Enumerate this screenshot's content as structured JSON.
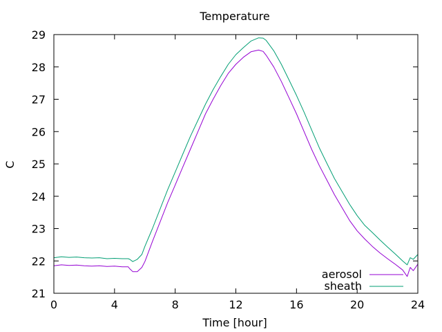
{
  "chart_data": {
    "type": "line",
    "title": "Temperature",
    "xlabel": "Time [hour]",
    "ylabel": "C",
    "xlim": [
      0,
      24
    ],
    "ylim": [
      21,
      29
    ],
    "x_ticks": [
      0,
      4,
      8,
      12,
      16,
      20,
      24
    ],
    "y_ticks": [
      21,
      22,
      23,
      24,
      25,
      26,
      27,
      28,
      29
    ],
    "grid": false,
    "legend_position": "bottom-right",
    "series": [
      {
        "name": "aerosol",
        "color": "#9400d3",
        "x": [
          0,
          0.5,
          1,
          1.5,
          2,
          2.5,
          3,
          3.5,
          4,
          4.5,
          4.9,
          5.0,
          5.2,
          5.5,
          5.8,
          6.0,
          6.5,
          7.0,
          7.5,
          8.0,
          8.5,
          9.0,
          9.5,
          10.0,
          10.5,
          11.0,
          11.5,
          12.0,
          12.5,
          13.0,
          13.5,
          13.8,
          14.0,
          14.5,
          15.0,
          15.5,
          16.0,
          16.5,
          17.0,
          17.5,
          18.0,
          18.5,
          19.0,
          19.5,
          20.0,
          20.5,
          21.0,
          21.5,
          22.0,
          22.5,
          23.0,
          23.3,
          23.5,
          23.7,
          24.0
        ],
        "values": [
          21.85,
          21.88,
          21.86,
          21.87,
          21.85,
          21.84,
          21.85,
          21.83,
          21.84,
          21.82,
          21.82,
          21.76,
          21.67,
          21.67,
          21.8,
          21.98,
          22.6,
          23.2,
          23.8,
          24.35,
          24.9,
          25.45,
          26.0,
          26.55,
          27.0,
          27.42,
          27.8,
          28.08,
          28.3,
          28.47,
          28.52,
          28.48,
          28.36,
          28.0,
          27.55,
          27.05,
          26.55,
          26.0,
          25.45,
          24.95,
          24.5,
          24.05,
          23.65,
          23.25,
          22.93,
          22.68,
          22.45,
          22.25,
          22.07,
          21.9,
          21.72,
          21.52,
          21.8,
          21.7,
          21.9
        ]
      },
      {
        "name": "sheath",
        "color": "#009e73",
        "x": [
          0,
          0.5,
          1,
          1.5,
          2,
          2.5,
          3,
          3.5,
          4,
          4.5,
          4.9,
          5.0,
          5.2,
          5.5,
          5.8,
          6.0,
          6.5,
          7.0,
          7.5,
          8.0,
          8.5,
          9.0,
          9.5,
          10.0,
          10.5,
          11.0,
          11.5,
          12.0,
          12.5,
          13.0,
          13.5,
          13.8,
          14.0,
          14.5,
          15.0,
          15.5,
          16.0,
          16.5,
          17.0,
          17.5,
          18.0,
          18.5,
          19.0,
          19.5,
          20.0,
          20.5,
          21.0,
          21.5,
          22.0,
          22.5,
          23.0,
          23.3,
          23.5,
          23.7,
          24.0
        ],
        "values": [
          22.1,
          22.13,
          22.11,
          22.12,
          22.1,
          22.09,
          22.1,
          22.07,
          22.08,
          22.07,
          22.07,
          22.05,
          21.98,
          22.05,
          22.2,
          22.45,
          23.0,
          23.6,
          24.2,
          24.75,
          25.3,
          25.85,
          26.35,
          26.85,
          27.3,
          27.7,
          28.08,
          28.38,
          28.6,
          28.8,
          28.9,
          28.89,
          28.82,
          28.5,
          28.08,
          27.6,
          27.12,
          26.6,
          26.05,
          25.5,
          25.02,
          24.55,
          24.15,
          23.75,
          23.4,
          23.1,
          22.88,
          22.65,
          22.43,
          22.22,
          22.0,
          21.88,
          22.1,
          22.05,
          22.2
        ]
      }
    ]
  }
}
